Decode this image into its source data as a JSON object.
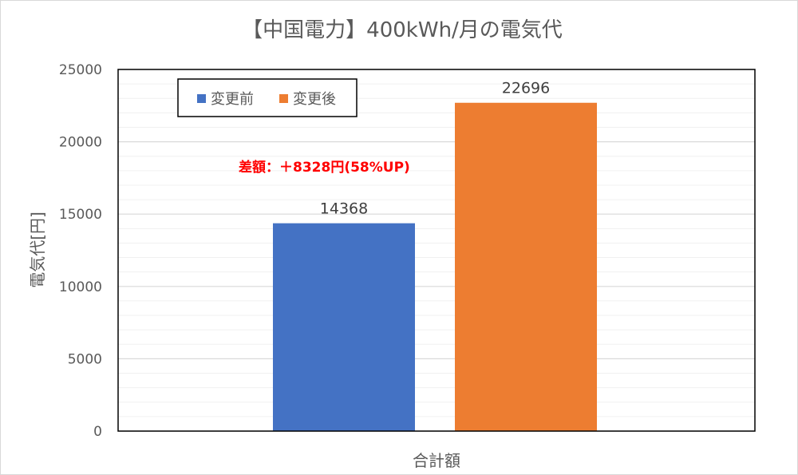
{
  "chart_data": {
    "type": "bar",
    "title": "【中国電力】400kWh/月の電気代",
    "categories": [
      "合計額"
    ],
    "series": [
      {
        "name": "変更前",
        "values": [
          14368
        ],
        "color": "#4472c4"
      },
      {
        "name": "変更後",
        "values": [
          22696
        ],
        "color": "#ed7d31"
      }
    ],
    "xlabel": "合計額",
    "ylabel": "電気代[円]",
    "ylim": [
      0,
      25000
    ],
    "yticks": [
      0,
      5000,
      10000,
      15000,
      20000,
      25000
    ],
    "minor_grid_step": 1000,
    "grid": true,
    "legend": "top-left",
    "annotation": "差額：＋8328円(58%UP)",
    "annotation_color": "#ff0000"
  }
}
